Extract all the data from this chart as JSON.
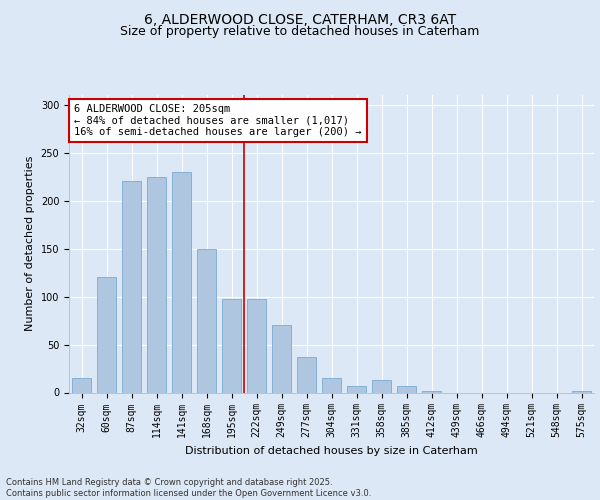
{
  "title": "6, ALDERWOOD CLOSE, CATERHAM, CR3 6AT",
  "subtitle": "Size of property relative to detached houses in Caterham",
  "xlabel": "Distribution of detached houses by size in Caterham",
  "ylabel": "Number of detached properties",
  "categories": [
    "32sqm",
    "60sqm",
    "87sqm",
    "114sqm",
    "141sqm",
    "168sqm",
    "195sqm",
    "222sqm",
    "249sqm",
    "277sqm",
    "304sqm",
    "331sqm",
    "358sqm",
    "385sqm",
    "412sqm",
    "439sqm",
    "466sqm",
    "494sqm",
    "521sqm",
    "548sqm",
    "575sqm"
  ],
  "values": [
    15,
    120,
    220,
    225,
    230,
    150,
    97,
    97,
    70,
    37,
    15,
    7,
    13,
    7,
    2,
    0,
    0,
    0,
    0,
    0,
    2
  ],
  "bar_color": "#aec6e0",
  "bar_edge_color": "#7aaad0",
  "vline_color": "#cc0000",
  "annotation_text": "6 ALDERWOOD CLOSE: 205sqm\n← 84% of detached houses are smaller (1,017)\n16% of semi-detached houses are larger (200) →",
  "annotation_box_color": "#ffffff",
  "annotation_box_edge": "#cc0000",
  "ylim": [
    0,
    310
  ],
  "yticks": [
    0,
    50,
    100,
    150,
    200,
    250,
    300
  ],
  "plot_bg_color": "#dce8f5",
  "fig_bg_color": "#dce8f5",
  "footer": "Contains HM Land Registry data © Crown copyright and database right 2025.\nContains public sector information licensed under the Open Government Licence v3.0.",
  "title_fontsize": 10,
  "subtitle_fontsize": 9,
  "xlabel_fontsize": 8,
  "ylabel_fontsize": 8,
  "tick_fontsize": 7,
  "footer_fontsize": 6,
  "annotation_fontsize": 7.5
}
